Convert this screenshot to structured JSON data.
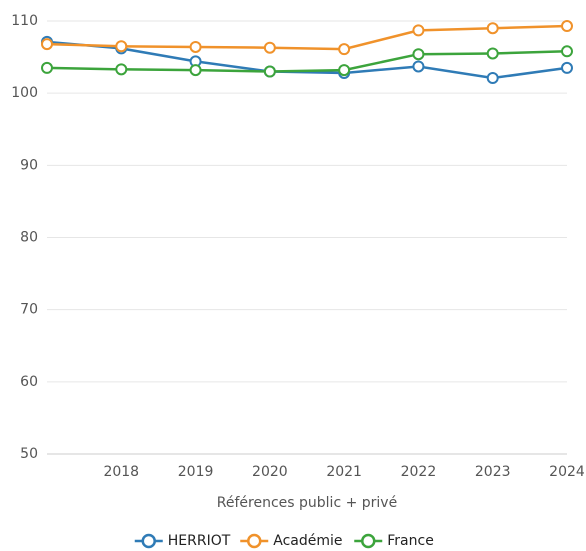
{
  "chart_data": {
    "type": "line",
    "x_label": "Références public + privé",
    "categories": [
      null,
      "2018",
      "2019",
      "2020",
      "2021",
      "2022",
      "2023",
      "2024"
    ],
    "series": [
      {
        "name": "HERRIOT",
        "color": "#2f7bb6",
        "values": [
          107.1,
          106.2,
          104.4,
          103.0,
          102.8,
          103.7,
          102.1,
          103.5
        ]
      },
      {
        "name": "Académie",
        "color": "#f0922b",
        "values": [
          106.8,
          106.5,
          106.4,
          106.3,
          106.1,
          108.7,
          109.0,
          109.3
        ]
      },
      {
        "name": "France",
        "color": "#3ca43c",
        "values": [
          103.5,
          103.3,
          103.2,
          103.0,
          103.2,
          105.4,
          105.5,
          105.8
        ]
      }
    ],
    "ylim": [
      50,
      110
    ],
    "yticks": [
      50,
      60,
      70,
      80,
      90,
      100,
      110
    ],
    "grid": true,
    "legend": "bottom"
  }
}
